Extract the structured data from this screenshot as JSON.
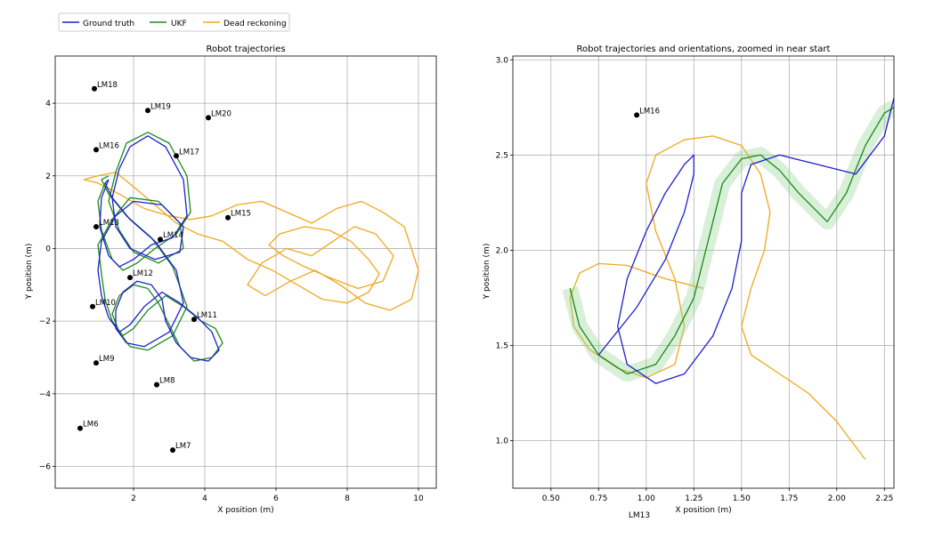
{
  "legend": [
    {
      "name": "Ground truth",
      "color": "#1f1fcf"
    },
    {
      "name": "UKF",
      "color": "#1a8a1a"
    },
    {
      "name": "Dead reckoning",
      "color": "#f0a81c"
    }
  ],
  "chart_data": [
    {
      "type": "line",
      "title": "Robot trajectories",
      "xlabel": "X position (m)",
      "ylabel": "Y position (m)",
      "xlim": [
        -0.2,
        10.5
      ],
      "ylim": [
        -6.6,
        5.3
      ],
      "xticks": [
        "2",
        "4",
        "6",
        "8",
        "10"
      ],
      "xtick_values": [
        2,
        4,
        6,
        8,
        10
      ],
      "yticks": [
        "−6",
        "−4",
        "−2",
        "0",
        "2",
        "4"
      ],
      "ytick_values": [
        -6,
        -4,
        -2,
        0,
        2,
        4
      ],
      "grid": true,
      "landmarks": [
        {
          "label": "LM18",
          "x": 0.9,
          "y": 4.4
        },
        {
          "label": "LM19",
          "x": 2.4,
          "y": 3.8
        },
        {
          "label": "LM20",
          "x": 4.1,
          "y": 3.6
        },
        {
          "label": "LM16",
          "x": 0.95,
          "y": 2.72
        },
        {
          "label": "LM17",
          "x": 3.2,
          "y": 2.55
        },
        {
          "label": "LM15",
          "x": 4.65,
          "y": 0.85
        },
        {
          "label": "LM13",
          "x": 0.95,
          "y": 0.6
        },
        {
          "label": "LM14",
          "x": 2.75,
          "y": 0.25
        },
        {
          "label": "LM12",
          "x": 1.9,
          "y": -0.8
        },
        {
          "label": "LM10",
          "x": 0.85,
          "y": -1.6
        },
        {
          "label": "LM11",
          "x": 3.7,
          "y": -1.95
        },
        {
          "label": "LM9",
          "x": 0.95,
          "y": -3.15
        },
        {
          "label": "LM8",
          "x": 2.65,
          "y": -3.75
        },
        {
          "label": "LM6",
          "x": 0.5,
          "y": -4.95
        },
        {
          "label": "LM7",
          "x": 3.1,
          "y": -5.55
        }
      ],
      "series": [
        {
          "name": "Ground truth",
          "color": "#1f1fcf",
          "x": [
            1.3,
            1.1,
            1.05,
            1.3,
            1.6,
            2.0,
            2.5,
            3.1,
            3.5,
            3.4,
            2.9,
            2.4,
            1.9,
            1.6,
            1.4,
            1.5,
            1.9,
            2.6,
            3.3,
            3.4,
            2.8,
            2.0,
            1.5,
            1.1,
            1.0,
            1.1,
            1.3,
            1.6,
            1.9,
            2.3,
            2.8,
            3.3,
            3.8,
            4.2,
            4.4,
            4.1,
            3.6,
            3.2,
            2.9,
            2.8,
            2.5,
            2.1,
            1.7,
            1.5,
            1.5,
            1.8,
            2.3,
            3.0,
            3.4,
            3.2,
            2.6,
            1.9,
            1.4,
            1.2,
            1.3
          ],
          "y": [
            1.9,
            1.4,
            0.6,
            -0.2,
            -0.5,
            -0.3,
            0.1,
            0.3,
            0.9,
            1.9,
            2.8,
            3.1,
            2.8,
            2.2,
            1.4,
            0.6,
            0.0,
            -0.3,
            -0.1,
            0.6,
            1.2,
            1.3,
            0.9,
            0.2,
            -0.6,
            -1.3,
            -1.9,
            -2.3,
            -2.1,
            -1.6,
            -1.2,
            -1.5,
            -1.9,
            -2.3,
            -2.8,
            -3.1,
            -3.0,
            -2.6,
            -2.0,
            -1.4,
            -1.0,
            -0.9,
            -1.2,
            -1.7,
            -2.2,
            -2.6,
            -2.7,
            -2.3,
            -1.5,
            -0.6,
            0.2,
            0.8,
            1.4,
            1.8,
            1.9
          ]
        },
        {
          "name": "UKF",
          "color": "#1a8a1a",
          "x": [
            1.2,
            1.0,
            1.1,
            1.4,
            1.7,
            2.1,
            2.6,
            3.2,
            3.6,
            3.5,
            3.0,
            2.4,
            1.8,
            1.5,
            1.3,
            1.6,
            2.0,
            2.7,
            3.4,
            3.3,
            2.7,
            1.9,
            1.4,
            1.0,
            1.1,
            1.2,
            1.4,
            1.7,
            2.0,
            2.4,
            2.9,
            3.4,
            3.9,
            4.3,
            4.5,
            4.2,
            3.7,
            3.3,
            3.0,
            2.7,
            2.4,
            2.0,
            1.6,
            1.4,
            1.6,
            1.9,
            2.4,
            3.1,
            3.5,
            3.1,
            2.5,
            1.8,
            1.3,
            1.1,
            1.3
          ],
          "y": [
            1.8,
            1.3,
            0.5,
            -0.3,
            -0.6,
            -0.4,
            0.0,
            0.4,
            1.0,
            2.0,
            2.9,
            3.2,
            2.9,
            2.1,
            1.3,
            0.5,
            -0.1,
            -0.4,
            0.0,
            0.7,
            1.3,
            1.4,
            0.8,
            0.1,
            -0.7,
            -1.4,
            -2.0,
            -2.4,
            -2.2,
            -1.7,
            -1.3,
            -1.6,
            -2.0,
            -2.2,
            -2.6,
            -3.0,
            -3.1,
            -2.7,
            -2.1,
            -1.5,
            -1.1,
            -1.0,
            -1.3,
            -1.8,
            -2.3,
            -2.7,
            -2.8,
            -2.4,
            -1.6,
            -0.5,
            0.3,
            0.9,
            1.5,
            1.9,
            2.0
          ]
        },
        {
          "name": "Dead reckoning",
          "color": "#f0a81c",
          "x": [
            0.6,
            1.0,
            1.6,
            2.3,
            3.0,
            3.6,
            4.2,
            4.9,
            5.6,
            6.3,
            7.0,
            7.7,
            8.4,
            9.0,
            9.6,
            10.0,
            9.8,
            9.2,
            8.5,
            7.8,
            7.1,
            6.4,
            5.7,
            5.2,
            5.6,
            6.3,
            7.0,
            7.6,
            8.2,
            8.8,
            9.3,
            9.0,
            8.3,
            7.5,
            6.8,
            6.2,
            5.8,
            6.1,
            6.8,
            7.5,
            8.1,
            8.6,
            8.9,
            8.6,
            8.0,
            7.3,
            6.6,
            5.9,
            5.2,
            4.5,
            3.8,
            3.2,
            2.6,
            2.0,
            1.5,
            1.0,
            0.6
          ],
          "y": [
            1.9,
            1.8,
            1.5,
            1.1,
            0.9,
            0.8,
            0.9,
            1.2,
            1.3,
            1.0,
            0.7,
            1.1,
            1.3,
            1.0,
            0.6,
            -0.6,
            -1.4,
            -1.7,
            -1.5,
            -1.0,
            -0.6,
            -0.9,
            -1.3,
            -1.0,
            -0.4,
            0.0,
            -0.2,
            0.2,
            0.6,
            0.4,
            -0.2,
            -0.9,
            -1.1,
            -0.8,
            -0.5,
            -0.2,
            0.1,
            0.4,
            0.6,
            0.5,
            0.2,
            -0.3,
            -0.7,
            -1.2,
            -1.5,
            -1.4,
            -1.0,
            -0.6,
            -0.3,
            0.2,
            0.4,
            0.7,
            1.2,
            1.7,
            2.1,
            2.0,
            1.9
          ]
        }
      ]
    },
    {
      "type": "line",
      "title": "Robot trajectories and orientations, zoomed in near start",
      "xlabel": "X position (m)",
      "ylabel": "Y position (m)",
      "xlim": [
        0.3,
        2.3
      ],
      "ylim": [
        0.75,
        3.02
      ],
      "xticks": [
        "0.50",
        "0.75",
        "1.00",
        "1.25",
        "1.50",
        "1.75",
        "2.00",
        "2.25"
      ],
      "xtick_values": [
        0.5,
        0.75,
        1.0,
        1.25,
        1.5,
        1.75,
        2.0,
        2.25
      ],
      "yticks": [
        "1.0",
        "1.5",
        "2.0",
        "2.5",
        "3.0"
      ],
      "ytick_values": [
        1.0,
        1.5,
        2.0,
        2.5,
        3.0
      ],
      "grid": true,
      "landmarks": [
        {
          "label": "LM16",
          "x": 0.95,
          "y": 2.71
        }
      ],
      "outside_label": "LM13",
      "series": [
        {
          "name": "Ground truth",
          "color": "#1f1fcf",
          "x": [
            0.75,
            0.95,
            1.1,
            1.2,
            1.25,
            1.25,
            1.2,
            1.1,
            1.0,
            0.9,
            0.85,
            0.9,
            1.05,
            1.2,
            1.35,
            1.45,
            1.5,
            1.5,
            1.55,
            1.7,
            1.9,
            2.1,
            2.25,
            2.3
          ],
          "y": [
            1.45,
            1.7,
            1.95,
            2.2,
            2.4,
            2.5,
            2.45,
            2.3,
            2.1,
            1.85,
            1.6,
            1.4,
            1.3,
            1.35,
            1.55,
            1.8,
            2.05,
            2.3,
            2.45,
            2.5,
            2.45,
            2.4,
            2.6,
            2.8
          ]
        },
        {
          "name": "UKF",
          "color": "#1a8a1a",
          "x": [
            0.6,
            0.65,
            0.75,
            0.9,
            1.05,
            1.15,
            1.25,
            1.3,
            1.35,
            1.4,
            1.5,
            1.6,
            1.7,
            1.8,
            1.95,
            2.05,
            2.15,
            2.25,
            2.3
          ],
          "y": [
            1.8,
            1.6,
            1.45,
            1.35,
            1.4,
            1.55,
            1.75,
            1.95,
            2.15,
            2.35,
            2.48,
            2.5,
            2.42,
            2.3,
            2.15,
            2.3,
            2.55,
            2.72,
            2.75
          ]
        },
        {
          "name": "Dead reckoning",
          "color": "#f0a81c",
          "x": [
            1.3,
            1.1,
            0.9,
            0.75,
            0.65,
            0.6,
            0.62,
            0.7,
            0.85,
            1.0,
            1.15,
            1.2,
            1.15,
            1.05,
            1.0,
            1.05,
            1.2,
            1.35,
            1.5,
            1.6,
            1.65,
            1.62,
            1.55,
            1.5,
            1.55,
            1.7,
            1.85,
            2.0,
            2.15
          ],
          "y": [
            1.8,
            1.85,
            1.92,
            1.93,
            1.88,
            1.75,
            1.6,
            1.48,
            1.38,
            1.33,
            1.4,
            1.6,
            1.85,
            2.1,
            2.35,
            2.5,
            2.58,
            2.6,
            2.55,
            2.4,
            2.2,
            2.0,
            1.8,
            1.6,
            1.45,
            1.35,
            1.25,
            1.1,
            0.9
          ]
        }
      ]
    }
  ]
}
